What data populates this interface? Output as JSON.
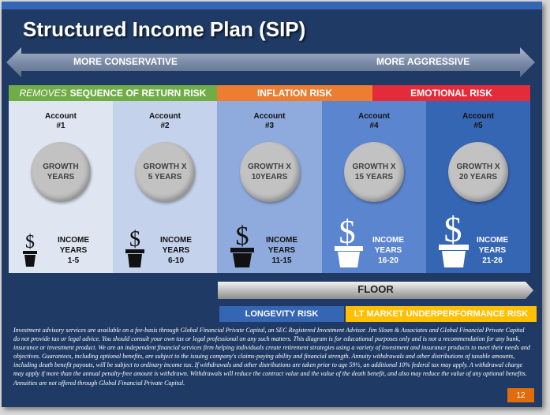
{
  "title": "Structured Income Plan (SIP)",
  "arrow": {
    "left_label": "MORE CONSERVATIVE",
    "right_label": "MORE AGGRESSIVE"
  },
  "risks": {
    "sequence_prefix": "REMOVES",
    "sequence": "SEQUENCE OF RETURN RISK",
    "inflation": "INFLATION RISK",
    "emotional": "EMOTIONAL RISK"
  },
  "accounts": [
    {
      "label": "Account",
      "num": "#1",
      "growth_l1": "GROWTH",
      "growth_l2": "YEARS",
      "income_l1": "INCOME",
      "income_l2": "YEARS",
      "income_l3": "1-5"
    },
    {
      "label": "Account",
      "num": "#2",
      "growth_l1": "GROWTH X",
      "growth_l2": "5 YEARS",
      "income_l1": "INCOME",
      "income_l2": "YEARS",
      "income_l3": "6-10"
    },
    {
      "label": "Account",
      "num": "#3",
      "growth_l1": "GROWTH X",
      "growth_l2": "10YEARS",
      "income_l1": "INCOME",
      "income_l2": "YEARS",
      "income_l3": "11-15"
    },
    {
      "label": "Account",
      "num": "#4",
      "growth_l1": "GROWTH X",
      "growth_l2": "15 YEARS",
      "income_l1": "INCOME",
      "income_l2": "YEARS",
      "income_l3": "16-20"
    },
    {
      "label": "Account",
      "num": "#5",
      "growth_l1": "GROWTH X",
      "growth_l2": "20 YEARS",
      "income_l1": "INCOME",
      "income_l2": "YEARS",
      "income_l3": "21-26"
    }
  ],
  "dollar_sign": "$",
  "floor": "FLOOR",
  "longevity": "LONGEVITY RISK",
  "lt_market": "LT MARKET UNDERPERFORMANCE RISK",
  "disclaimer": "Investment advisory services are available on a fee-basis through Global Financial Private Capital, an SEC Registered Investment Advisor. Jim Sloan & Associates and Global Financial Private Capital do not provide tax or legal advice. You should consult your own tax or legal professional on any such matters. This diagram is for educational purposes only and is not a recommendation for any bank, insurance or investment product. We are an independent financial services firm helping individuals create retirement strategies using a variety of investment and insurance products to meet their needs and objectives. Guarantees, including optional benefits, are subject to the issuing company's claims-paying ability and financial strength. Annuity withdrawals and other distributions of taxable amounts, including death benefit payouts, will be subject to ordinary income tax. If withdrawals and other distributions are taken prior to age 59½, an additional 10% federal tax may apply. A withdrawal charge may apply if more than the annual penalty-free amount is withdrawn. Withdrawals will reduce the contract value and the value of the death benefit, and also may reduce the value of any optional benefits. Annuities are not offered through Global Financial Private Capital.",
  "page_number": "12",
  "colors": {
    "background": "#1f3a64",
    "sequence_risk": "#70ad47",
    "inflation_risk": "#ed7d31",
    "emotional_risk": "#e42b3a",
    "longevity_risk": "#3566b3",
    "lt_market_risk": "#ffc000",
    "page_badge": "#e36c0a"
  },
  "icons": [
    "double-arrow-icon",
    "dollar-plant-pot-icon",
    "floor-arrow-icon"
  ]
}
